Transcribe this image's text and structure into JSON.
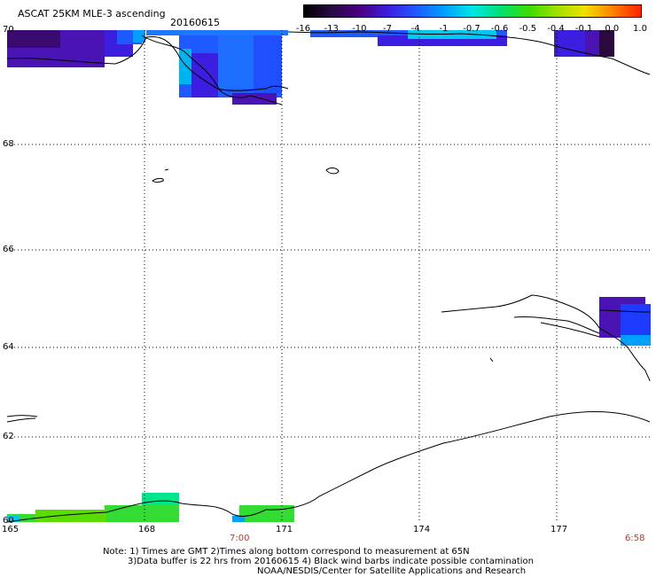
{
  "header": {
    "title": "ASCAT 25KM MLE-3 ascending",
    "date": "20160615"
  },
  "colorbar": {
    "labels": [
      "-16",
      "-13",
      "-10",
      "-7",
      "-4",
      "-1",
      "-0.7",
      "-0.6",
      "-0.5",
      "-0.4",
      "-0.1",
      "0.0",
      "1.0"
    ],
    "colors": [
      "#000000",
      "#2a0a45",
      "#4b0082",
      "#3c1ee0",
      "#1e5aff",
      "#00a0ff",
      "#00e6e6",
      "#00e070",
      "#3cdc00",
      "#a0e000",
      "#f0e000",
      "#ff8000",
      "#ff2000"
    ]
  },
  "axes": {
    "lat_labels": [
      "70",
      "68",
      "66",
      "64",
      "62",
      "60"
    ],
    "lon_labels": [
      "165",
      "168",
      "171",
      "174",
      "177"
    ],
    "time_labels": [
      "7:00",
      "6:58"
    ]
  },
  "footer": {
    "note_line1": "Note: 1) Times are GMT 2)Times along bottom correspond to measurement at 65N",
    "note_line2": "3)Data buffer is 22 hrs from 20160615 4) Black wind barbs indicate possible contamination",
    "credit": "NOAA/NESDIS/Center for Satellite Applications and Research"
  },
  "legend_colors": {
    "deep_purple": "#3a0a6e",
    "indigo": "#4a14b4",
    "blue": "#1e3cff",
    "sky": "#1e78ff",
    "cyan": "#00d2f0",
    "aqua": "#00e6c8",
    "green": "#32dc32",
    "lime": "#8ce600",
    "spring": "#00e68c",
    "dark": "#2a0a3c"
  }
}
